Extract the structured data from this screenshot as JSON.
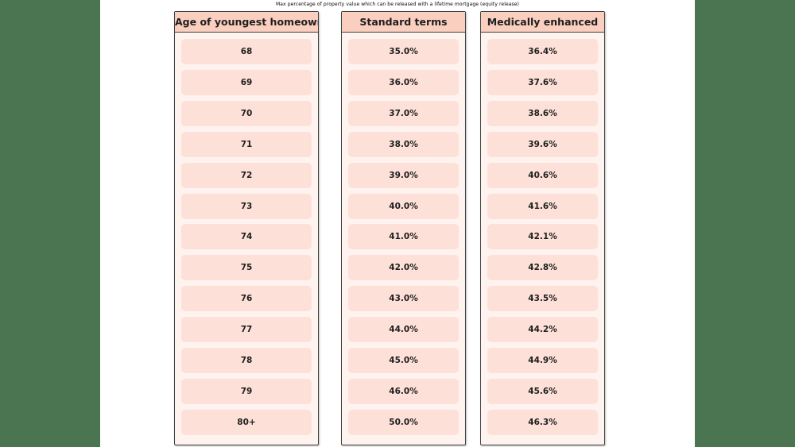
{
  "caption": "Max percentage of property value which can be released with a lifetime mortgage (equity release)",
  "columns": [
    {
      "header": "Age of youngest homeowner",
      "values": [
        "68",
        "69",
        "70",
        "71",
        "72",
        "73",
        "74",
        "75",
        "76",
        "77",
        "78",
        "79",
        "80+"
      ]
    },
    {
      "header": "Standard terms",
      "values": [
        "35.0%",
        "36.0%",
        "37.0%",
        "38.0%",
        "39.0%",
        "40.0%",
        "41.0%",
        "42.0%",
        "43.0%",
        "44.0%",
        "45.0%",
        "46.0%",
        "50.0%"
      ]
    },
    {
      "header": "Medically enhanced",
      "values": [
        "36.4%",
        "37.6%",
        "38.6%",
        "39.6%",
        "40.6%",
        "41.6%",
        "42.1%",
        "42.8%",
        "43.5%",
        "44.2%",
        "44.9%",
        "45.6%",
        "46.3%"
      ]
    }
  ]
}
